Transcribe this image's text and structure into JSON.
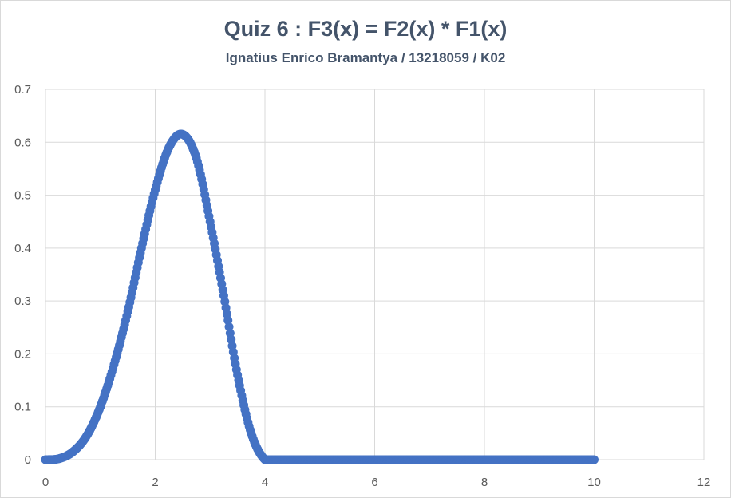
{
  "chart_data": {
    "type": "scatter",
    "title": "Quiz 6 : F3(x) = F2(x) * F1(x)",
    "subtitle": "Ignatius Enrico Bramantya / 13218059 / K02",
    "xlabel": "",
    "ylabel": "",
    "xlim": [
      0,
      12
    ],
    "ylim": [
      0,
      0.7
    ],
    "x_ticks": [
      "0",
      "2",
      "4",
      "6",
      "8",
      "10",
      "12"
    ],
    "y_ticks": [
      "0",
      "0.1",
      "0.2",
      "0.3",
      "0.4",
      "0.5",
      "0.6",
      "0.7"
    ],
    "grid": true,
    "legend": "none",
    "marker_color": "#4472c4",
    "series": [
      {
        "x": [
          0,
          0.25,
          0.5,
          0.75,
          1.0,
          1.25,
          1.5,
          1.75,
          2.0,
          2.25,
          2.5,
          2.75,
          3.0,
          3.25,
          3.5,
          3.75,
          4.0,
          4.5,
          5,
          6,
          7,
          8,
          9,
          10
        ],
        "y": [
          0,
          0.002,
          0.015,
          0.045,
          0.1,
          0.18,
          0.28,
          0.4,
          0.51,
          0.59,
          0.615,
          0.57,
          0.45,
          0.31,
          0.16,
          0.05,
          0,
          0,
          0,
          0,
          0,
          0,
          0,
          0
        ]
      }
    ]
  }
}
